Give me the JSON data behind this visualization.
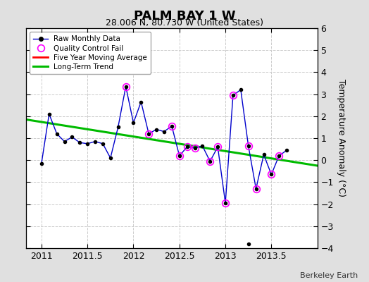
{
  "title": "PALM BAY 1 W",
  "subtitle": "28.006 N, 80.730 W (United States)",
  "ylabel": "Temperature Anomaly (°C)",
  "credit": "Berkeley Earth",
  "xlim": [
    2010.83,
    2014.0
  ],
  "ylim": [
    -4,
    6
  ],
  "yticks": [
    -4,
    -3,
    -2,
    -1,
    0,
    1,
    2,
    3,
    4,
    5,
    6
  ],
  "xticks": [
    2011,
    2011.5,
    2012,
    2012.5,
    2013,
    2013.5
  ],
  "xticklabels": [
    "2011",
    "2011.5",
    "2012",
    "2012.5",
    "2013",
    "2013.5"
  ],
  "raw_x": [
    2011.0,
    2011.083,
    2011.167,
    2011.25,
    2011.333,
    2011.417,
    2011.5,
    2011.583,
    2011.667,
    2011.75,
    2011.833,
    2011.917,
    2012.0,
    2012.083,
    2012.167,
    2012.25,
    2012.333,
    2012.417,
    2012.5,
    2012.583,
    2012.667,
    2012.75,
    2012.833,
    2012.917,
    2013.0,
    2013.083,
    2013.167,
    2013.25,
    2013.333,
    2013.417,
    2013.5,
    2013.583,
    2013.667,
    2013.75
  ],
  "raw_y": [
    -0.15,
    2.1,
    1.2,
    0.85,
    1.05,
    0.8,
    0.75,
    0.85,
    0.75,
    0.1,
    1.5,
    3.35,
    1.7,
    2.65,
    1.2,
    1.4,
    1.3,
    1.55,
    0.2,
    0.6,
    0.55,
    0.65,
    -0.05,
    0.6,
    -1.95,
    2.95,
    3.2,
    0.65,
    -1.3,
    0.25,
    -0.65,
    0.2,
    0.45,
    null
  ],
  "isolated_dot_x": [
    2013.25
  ],
  "isolated_dot_y": [
    -3.8
  ],
  "qc_x": [
    2011.917,
    2012.167,
    2012.417,
    2012.5,
    2012.583,
    2012.667,
    2012.833,
    2012.917,
    2013.0,
    2013.083,
    2013.25,
    2013.333,
    2013.5,
    2013.583
  ],
  "qc_y": [
    3.35,
    1.2,
    1.55,
    0.2,
    0.6,
    0.55,
    -0.05,
    0.6,
    -1.95,
    2.95,
    0.65,
    -1.3,
    -0.65,
    0.2
  ],
  "trend_x": [
    2010.83,
    2014.0
  ],
  "trend_y": [
    1.85,
    -0.25
  ],
  "raw_color": "#0000cc",
  "raw_marker_color": "#000000",
  "qc_color": "#ff00ff",
  "trend_color": "#00bb00",
  "ma_color": "#ff0000",
  "bg_color": "#e0e0e0",
  "plot_bg": "#ffffff"
}
